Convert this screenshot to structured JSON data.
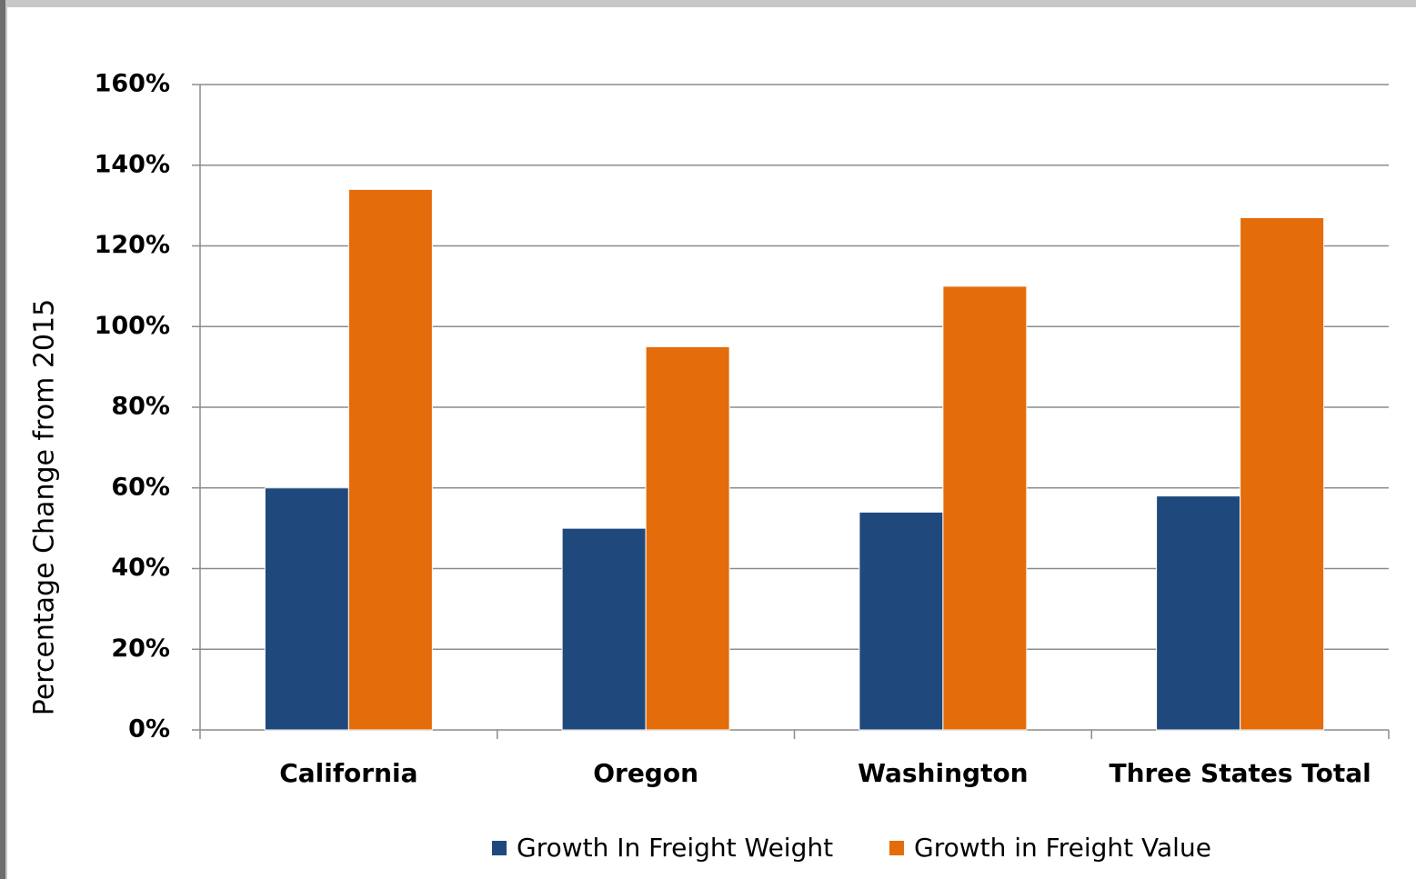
{
  "chart_data": {
    "type": "bar",
    "y_label": "Percentage Change from 2015",
    "categories": [
      "California",
      "Oregon",
      "Washington",
      "Three States Total"
    ],
    "series": [
      {
        "name": "Growth In Freight Weight",
        "color": "#1f497d",
        "values": [
          60,
          50,
          54,
          58
        ]
      },
      {
        "name": "Growth in Freight Value",
        "color": "#e46c0a",
        "values": [
          134,
          95,
          110,
          127
        ]
      }
    ],
    "ylim": [
      0,
      160
    ],
    "yticks": [
      {
        "value": 0,
        "label": "0%"
      },
      {
        "value": 20,
        "label": "20%"
      },
      {
        "value": 40,
        "label": "40%"
      },
      {
        "value": 60,
        "label": "60%"
      },
      {
        "value": 80,
        "label": "80%"
      },
      {
        "value": 100,
        "label": "100%"
      },
      {
        "value": 120,
        "label": "120%"
      },
      {
        "value": 140,
        "label": "140%"
      },
      {
        "value": 160,
        "label": "160%"
      }
    ],
    "grid": true,
    "legend": "bottom"
  }
}
